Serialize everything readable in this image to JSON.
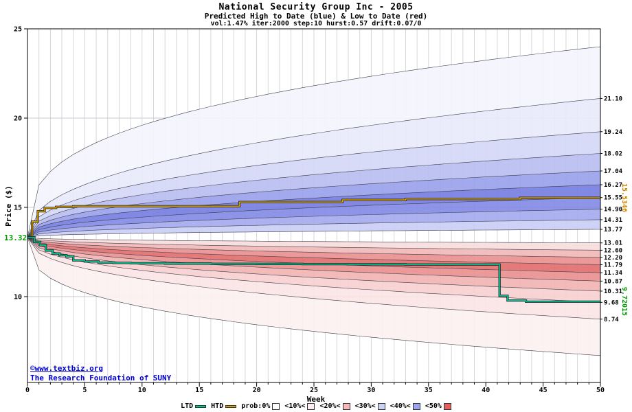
{
  "header": {
    "title": "National Security Group Inc - 2005",
    "subtitle": "Predicted High to Date (blue) &  Low to Date (red)",
    "params": "vol:1.47% iter:2000 step:10 hurst:0.57 drift:0.07/0"
  },
  "axes": {
    "xlabel": "Week",
    "ylabel": "Price ($)"
  },
  "annotations": {
    "start_price": "13.32",
    "htd_current": "15.5346",
    "ltd_current": "9.72015",
    "copyright": "©www.textbiz.org",
    "foundation": "The Research Foundation of SUNY"
  },
  "colors": {
    "accent_green": "#009900",
    "accent_orange": "#cc8800",
    "link_blue": "#0000cc",
    "ltd_line": "#00c896",
    "htd_line": "#d8a000"
  },
  "chart_data": {
    "type": "area",
    "title": "National Security Group Inc - 2005",
    "subtitle": "Predicted High to Date (blue) &  Low to Date (red)",
    "xlabel": "Week",
    "ylabel": "Price ($)",
    "xlim": [
      0,
      50
    ],
    "ylim": [
      5.2,
      25
    ],
    "x_ticks": [
      0,
      5,
      10,
      15,
      20,
      25,
      30,
      35,
      40,
      45,
      50
    ],
    "y_ticks": [
      10,
      15,
      20,
      25
    ],
    "grid": true,
    "start_week": 0,
    "start_price": 13.32,
    "spread_exponent": 0.42,
    "outer_exponent": 0.33,
    "high_band_edges_week50": [
      13.77,
      14.31,
      14.9,
      15.55,
      16.27,
      17.04,
      18.02,
      19.24,
      21.1
    ],
    "high_outer_extreme_week50": 24.0,
    "low_band_edges_week50": [
      13.01,
      12.6,
      12.2,
      11.79,
      11.34,
      10.87,
      10.31,
      9.68,
      8.74
    ],
    "low_outer_extreme_week50": 6.7,
    "high_band_colors": [
      "#c9cdf5",
      "#a3a9ee",
      "#8289e6",
      "#747ce2",
      "#98a0ea",
      "#b8bdf1",
      "#d4d7f7",
      "#e8eafb",
      "#f4f5fd"
    ],
    "low_band_colors": [
      "#f8dddd",
      "#f2b7b7",
      "#ea8e8e",
      "#e26b6b",
      "#ea8e8e",
      "#f2b3b3",
      "#f7cfcf",
      "#fbe4e4",
      "#fdf1f1"
    ],
    "htd_line": {
      "name": "HTD",
      "color": "#d8a000",
      "final_value": 15.5346,
      "steps": [
        [
          0,
          13.32
        ],
        [
          0.4,
          14.2
        ],
        [
          0.9,
          14.78
        ],
        [
          1.5,
          14.97
        ],
        [
          2.5,
          15.03
        ],
        [
          4,
          15.06
        ],
        [
          18.5,
          15.06
        ],
        [
          18.5,
          15.3
        ],
        [
          27.5,
          15.3
        ],
        [
          27.5,
          15.42
        ],
        [
          33,
          15.42
        ],
        [
          33,
          15.47
        ],
        [
          43,
          15.47
        ],
        [
          43,
          15.5346
        ],
        [
          50,
          15.5346
        ]
      ]
    },
    "ltd_line": {
      "name": "LTD",
      "color": "#00c896",
      "final_value": 9.72015,
      "steps": [
        [
          0,
          13.32
        ],
        [
          0.6,
          13.32
        ],
        [
          0.6,
          13.06
        ],
        [
          1.1,
          12.88
        ],
        [
          1.6,
          12.58
        ],
        [
          2.2,
          12.42
        ],
        [
          2.8,
          12.32
        ],
        [
          3.4,
          12.25
        ],
        [
          4,
          12.03
        ],
        [
          5,
          11.97
        ],
        [
          6.2,
          11.91
        ],
        [
          7.5,
          11.89
        ],
        [
          9,
          11.87
        ],
        [
          12,
          11.85
        ],
        [
          16,
          11.84
        ],
        [
          20,
          11.83
        ],
        [
          24,
          11.82
        ],
        [
          28,
          11.81
        ],
        [
          33,
          11.8
        ],
        [
          41.2,
          11.8
        ],
        [
          41.2,
          10.05
        ],
        [
          41.9,
          10.05
        ],
        [
          41.9,
          9.78
        ],
        [
          43.5,
          9.78
        ],
        [
          43.5,
          9.72
        ],
        [
          50,
          9.72
        ]
      ]
    }
  },
  "legend": {
    "items": [
      {
        "label": "LTD",
        "swatch": "line",
        "color": "#00c896"
      },
      {
        "label": "HTD",
        "swatch": "line",
        "color": "#d8a000"
      },
      {
        "label": "prob:0%",
        "swatch": "box",
        "color": "#ffffff"
      },
      {
        "label": "<10%<",
        "swatch": "box",
        "color": "#fbeef0"
      },
      {
        "label": "<20%<",
        "swatch": "box",
        "color": "#f2baba"
      },
      {
        "label": "<30%<",
        "swatch": "box",
        "color": "#ccd1f6"
      },
      {
        "label": "<40%<",
        "swatch": "box",
        "color": "#9ba3ee"
      },
      {
        "label": "<50%",
        "swatch": "box",
        "color": "#e25f5f"
      }
    ]
  }
}
